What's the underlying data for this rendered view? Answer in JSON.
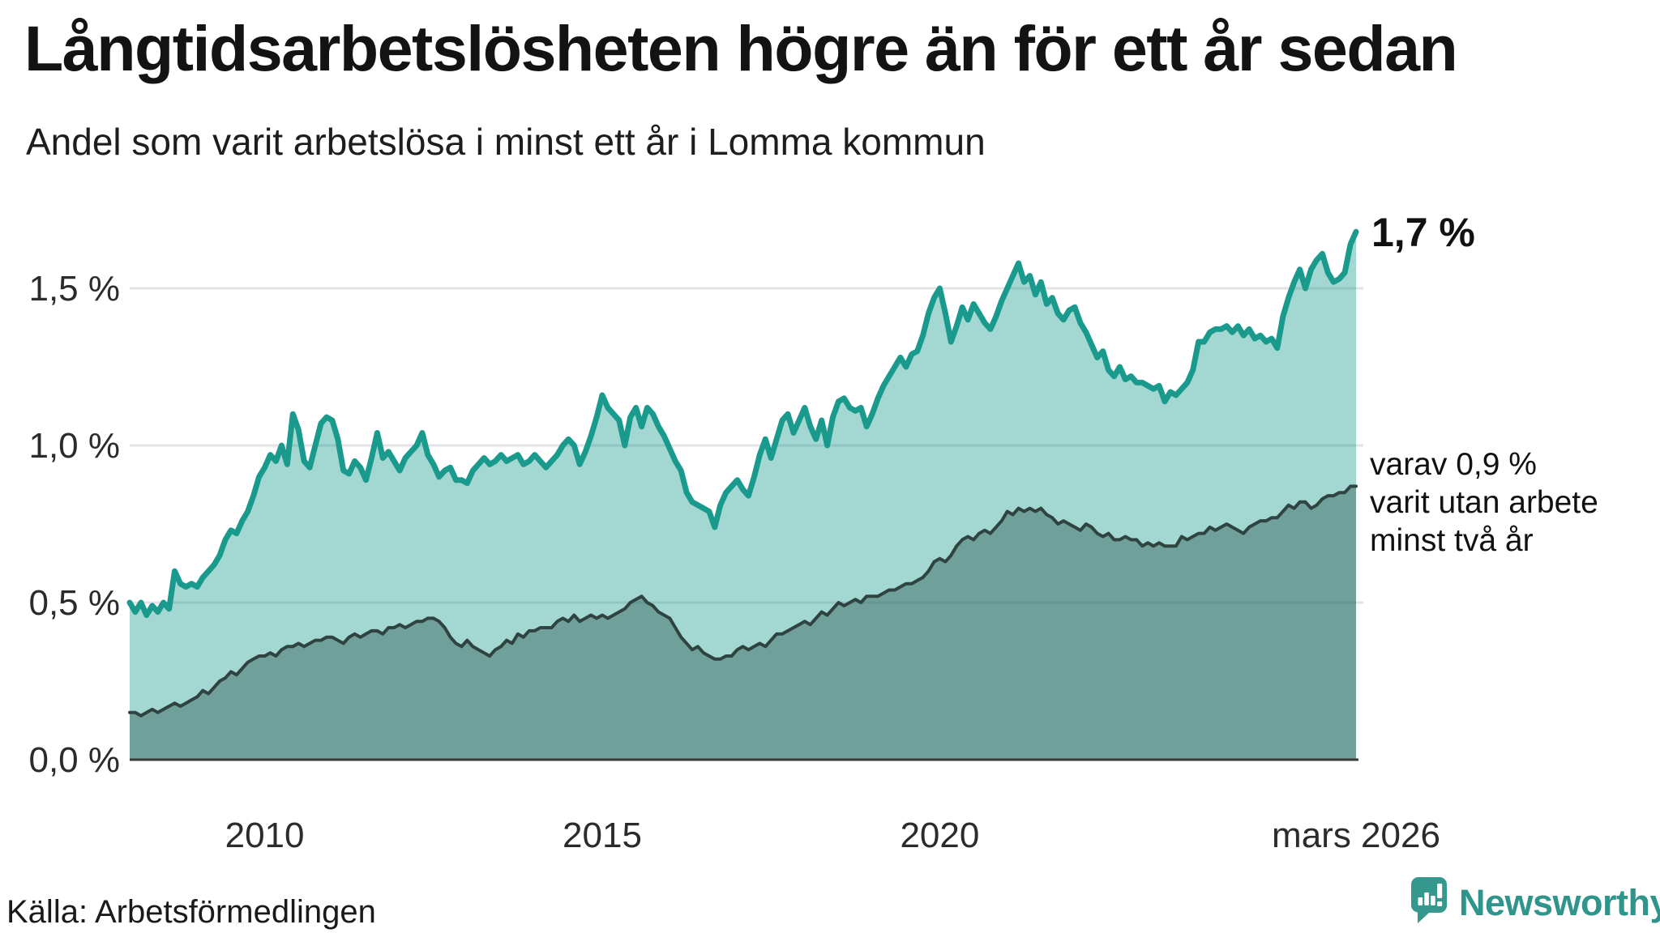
{
  "header": {
    "title": "Långtidsarbetslösheten högre än för ett år sedan",
    "subtitle": "Andel som varit arbetslösa i minst ett år i Lomma kommun"
  },
  "chart": {
    "y_ticks": [
      {
        "label": "1,5 %",
        "value": 1.5
      },
      {
        "label": "1,0 %",
        "value": 1.0
      },
      {
        "label": "0,5 %",
        "value": 0.5
      },
      {
        "label": "0,0 %",
        "value": 0.0
      }
    ],
    "x_ticks": [
      {
        "label": "2010",
        "year": 2010
      },
      {
        "label": "2015",
        "year": 2015
      },
      {
        "label": "2020",
        "year": 2020
      },
      {
        "label": "mars 2026",
        "year": 2026.1667
      }
    ],
    "end_label": "1,7 %",
    "annotation": {
      "lines": [
        "varav 0,9 %",
        "varit utan arbete",
        "minst två år"
      ]
    }
  },
  "chart_data": {
    "type": "area",
    "title": "Långtidsarbetslösheten högre än för ett år sedan",
    "subtitle": "Andel som varit arbetslösa i minst ett år i Lomma kommun",
    "x_unit": "monthly points, Jan 2008 - Mar 2026",
    "x_start": 2008.0,
    "x_end": 2026.1667,
    "x_step": 0.0833,
    "ylim": [
      0,
      1.75
    ],
    "gridlines": [
      0.5,
      1.0,
      1.5
    ],
    "legend_position": "end-of-line annotations",
    "series": [
      {
        "name": "Arbetslösa minst ett år",
        "end_value_label": "1,7 %",
        "color": "#199a8c",
        "fill": "rgba(25,154,140,0.40)",
        "values": [
          0.5,
          0.47,
          0.5,
          0.46,
          0.49,
          0.47,
          0.5,
          0.48,
          0.6,
          0.56,
          0.55,
          0.56,
          0.55,
          0.58,
          0.6,
          0.62,
          0.65,
          0.7,
          0.73,
          0.72,
          0.76,
          0.79,
          0.84,
          0.9,
          0.93,
          0.97,
          0.95,
          1.0,
          0.94,
          1.1,
          1.05,
          0.95,
          0.93,
          1.0,
          1.07,
          1.09,
          1.08,
          1.02,
          0.92,
          0.91,
          0.95,
          0.93,
          0.89,
          0.96,
          1.04,
          0.96,
          0.98,
          0.95,
          0.92,
          0.96,
          0.98,
          1.0,
          1.04,
          0.97,
          0.94,
          0.9,
          0.92,
          0.93,
          0.89,
          0.89,
          0.88,
          0.92,
          0.94,
          0.96,
          0.94,
          0.95,
          0.97,
          0.95,
          0.96,
          0.97,
          0.94,
          0.95,
          0.97,
          0.95,
          0.93,
          0.95,
          0.97,
          1.0,
          1.02,
          1.0,
          0.94,
          0.98,
          1.03,
          1.09,
          1.16,
          1.12,
          1.1,
          1.08,
          1.0,
          1.09,
          1.12,
          1.06,
          1.12,
          1.1,
          1.06,
          1.03,
          0.99,
          0.95,
          0.92,
          0.85,
          0.82,
          0.81,
          0.8,
          0.79,
          0.74,
          0.81,
          0.85,
          0.87,
          0.89,
          0.86,
          0.84,
          0.9,
          0.97,
          1.02,
          0.96,
          1.02,
          1.08,
          1.1,
          1.04,
          1.08,
          1.12,
          1.06,
          1.02,
          1.08,
          1.0,
          1.09,
          1.14,
          1.15,
          1.12,
          1.11,
          1.12,
          1.06,
          1.1,
          1.15,
          1.19,
          1.22,
          1.25,
          1.28,
          1.25,
          1.29,
          1.3,
          1.35,
          1.42,
          1.47,
          1.5,
          1.42,
          1.33,
          1.38,
          1.44,
          1.4,
          1.45,
          1.42,
          1.39,
          1.37,
          1.41,
          1.46,
          1.5,
          1.54,
          1.58,
          1.52,
          1.54,
          1.48,
          1.52,
          1.45,
          1.47,
          1.42,
          1.4,
          1.43,
          1.44,
          1.39,
          1.36,
          1.32,
          1.28,
          1.3,
          1.24,
          1.22,
          1.25,
          1.21,
          1.22,
          1.2,
          1.2,
          1.19,
          1.18,
          1.19,
          1.14,
          1.17,
          1.16,
          1.18,
          1.2,
          1.24,
          1.33,
          1.33,
          1.36,
          1.37,
          1.37,
          1.38,
          1.36,
          1.38,
          1.35,
          1.37,
          1.34,
          1.35,
          1.33,
          1.34,
          1.31,
          1.41,
          1.47,
          1.52,
          1.56,
          1.5,
          1.56,
          1.59,
          1.61,
          1.55,
          1.52,
          1.53,
          1.55,
          1.64,
          1.68
        ]
      },
      {
        "name": "varav utan arbete minst två år",
        "end_value_label": "0,9 %",
        "color": "#2f4340",
        "fill": "rgba(63,111,104,0.52)",
        "values": [
          0.15,
          0.15,
          0.14,
          0.15,
          0.16,
          0.15,
          0.16,
          0.17,
          0.18,
          0.17,
          0.18,
          0.19,
          0.2,
          0.22,
          0.21,
          0.23,
          0.25,
          0.26,
          0.28,
          0.27,
          0.29,
          0.31,
          0.32,
          0.33,
          0.33,
          0.34,
          0.33,
          0.35,
          0.36,
          0.36,
          0.37,
          0.36,
          0.37,
          0.38,
          0.38,
          0.39,
          0.39,
          0.38,
          0.37,
          0.39,
          0.4,
          0.39,
          0.4,
          0.41,
          0.41,
          0.4,
          0.42,
          0.42,
          0.43,
          0.42,
          0.43,
          0.44,
          0.44,
          0.45,
          0.45,
          0.44,
          0.42,
          0.39,
          0.37,
          0.36,
          0.38,
          0.36,
          0.35,
          0.34,
          0.33,
          0.35,
          0.36,
          0.38,
          0.37,
          0.4,
          0.39,
          0.41,
          0.41,
          0.42,
          0.42,
          0.42,
          0.44,
          0.45,
          0.44,
          0.46,
          0.44,
          0.45,
          0.46,
          0.45,
          0.46,
          0.45,
          0.46,
          0.47,
          0.48,
          0.5,
          0.51,
          0.52,
          0.5,
          0.49,
          0.47,
          0.46,
          0.45,
          0.42,
          0.39,
          0.37,
          0.35,
          0.36,
          0.34,
          0.33,
          0.32,
          0.32,
          0.33,
          0.33,
          0.35,
          0.36,
          0.35,
          0.36,
          0.37,
          0.36,
          0.38,
          0.4,
          0.4,
          0.41,
          0.42,
          0.43,
          0.44,
          0.43,
          0.45,
          0.47,
          0.46,
          0.48,
          0.5,
          0.49,
          0.5,
          0.51,
          0.5,
          0.52,
          0.52,
          0.52,
          0.53,
          0.54,
          0.54,
          0.55,
          0.56,
          0.56,
          0.57,
          0.58,
          0.6,
          0.63,
          0.64,
          0.63,
          0.65,
          0.68,
          0.7,
          0.71,
          0.7,
          0.72,
          0.73,
          0.72,
          0.74,
          0.76,
          0.79,
          0.78,
          0.8,
          0.79,
          0.8,
          0.79,
          0.8,
          0.78,
          0.77,
          0.75,
          0.76,
          0.75,
          0.74,
          0.73,
          0.75,
          0.74,
          0.72,
          0.71,
          0.72,
          0.7,
          0.7,
          0.71,
          0.7,
          0.7,
          0.68,
          0.69,
          0.68,
          0.69,
          0.68,
          0.68,
          0.68,
          0.71,
          0.7,
          0.71,
          0.72,
          0.72,
          0.74,
          0.73,
          0.74,
          0.75,
          0.74,
          0.73,
          0.72,
          0.74,
          0.75,
          0.76,
          0.76,
          0.77,
          0.77,
          0.79,
          0.81,
          0.8,
          0.82,
          0.82,
          0.8,
          0.81,
          0.83,
          0.84,
          0.84,
          0.85,
          0.85,
          0.87,
          0.87
        ]
      }
    ]
  },
  "footer": {
    "source": "Källa: Arbetsförmedlingen",
    "brand": "Newsworthy"
  },
  "colors": {
    "accent_teal": "#199a8c",
    "dark_series_line": "#2f4340",
    "light_fill": "#a8d6cf",
    "dark_fill": "#7ba29d",
    "gridline": "#e2e2e7",
    "axis_line": "#3a3a3a",
    "tick_text": "#2b2b2b",
    "logo_teal": "#35988f",
    "wordmark_teal": "#2e948c"
  }
}
